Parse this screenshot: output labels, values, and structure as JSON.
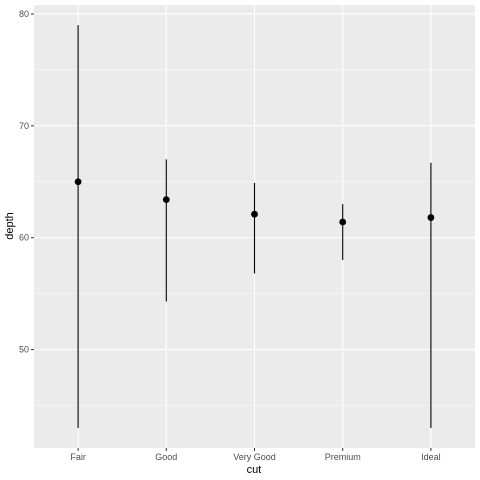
{
  "chart_data": {
    "type": "pointrange",
    "xlabel": "cut",
    "ylabel": "depth",
    "categories": [
      "Fair",
      "Good",
      "Very Good",
      "Premium",
      "Ideal"
    ],
    "points": [
      {
        "category": "Fair",
        "y": 65.0,
        "ymin": 43.0,
        "ymax": 79.0
      },
      {
        "category": "Good",
        "y": 63.4,
        "ymin": 54.3,
        "ymax": 67.0
      },
      {
        "category": "Very Good",
        "y": 62.1,
        "ymin": 56.8,
        "ymax": 64.9
      },
      {
        "category": "Premium",
        "y": 61.4,
        "ymin": 58.0,
        "ymax": 63.0
      },
      {
        "category": "Ideal",
        "y": 61.8,
        "ymin": 43.0,
        "ymax": 66.7
      }
    ],
    "yticks": [
      50,
      60,
      70,
      80
    ],
    "ylim": [
      41.2,
      80.8
    ],
    "grid": true,
    "colors": {
      "panel": "#ebebeb",
      "grid_major": "#ffffff",
      "point": "#000000",
      "range": "#000000"
    }
  }
}
